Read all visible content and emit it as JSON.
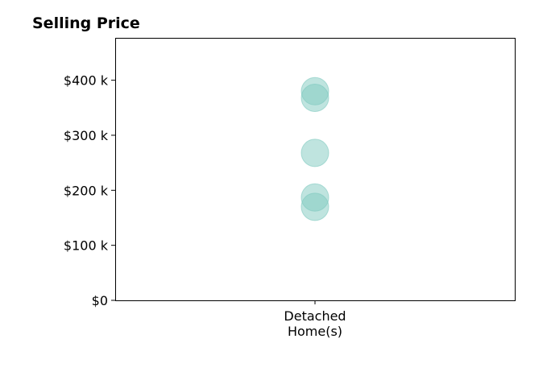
{
  "chart_data": {
    "type": "scatter",
    "title": "Selling Price",
    "xlabel": "",
    "ylabel": "",
    "categories": [
      [
        "Detached",
        "Home(s)"
      ]
    ],
    "series": [
      {
        "category_index": 0,
        "values": [
          380000,
          368000,
          268000,
          187000,
          170000
        ]
      }
    ],
    "yticks": [
      0,
      100000,
      200000,
      300000,
      400000
    ],
    "ytick_labels": [
      "$0",
      "$100 k",
      "$200 k",
      "$300 k",
      "$400 k"
    ],
    "ylim": [
      0,
      477000
    ],
    "grid": false,
    "legend": "none",
    "marker_color": "#7fc9bf"
  }
}
